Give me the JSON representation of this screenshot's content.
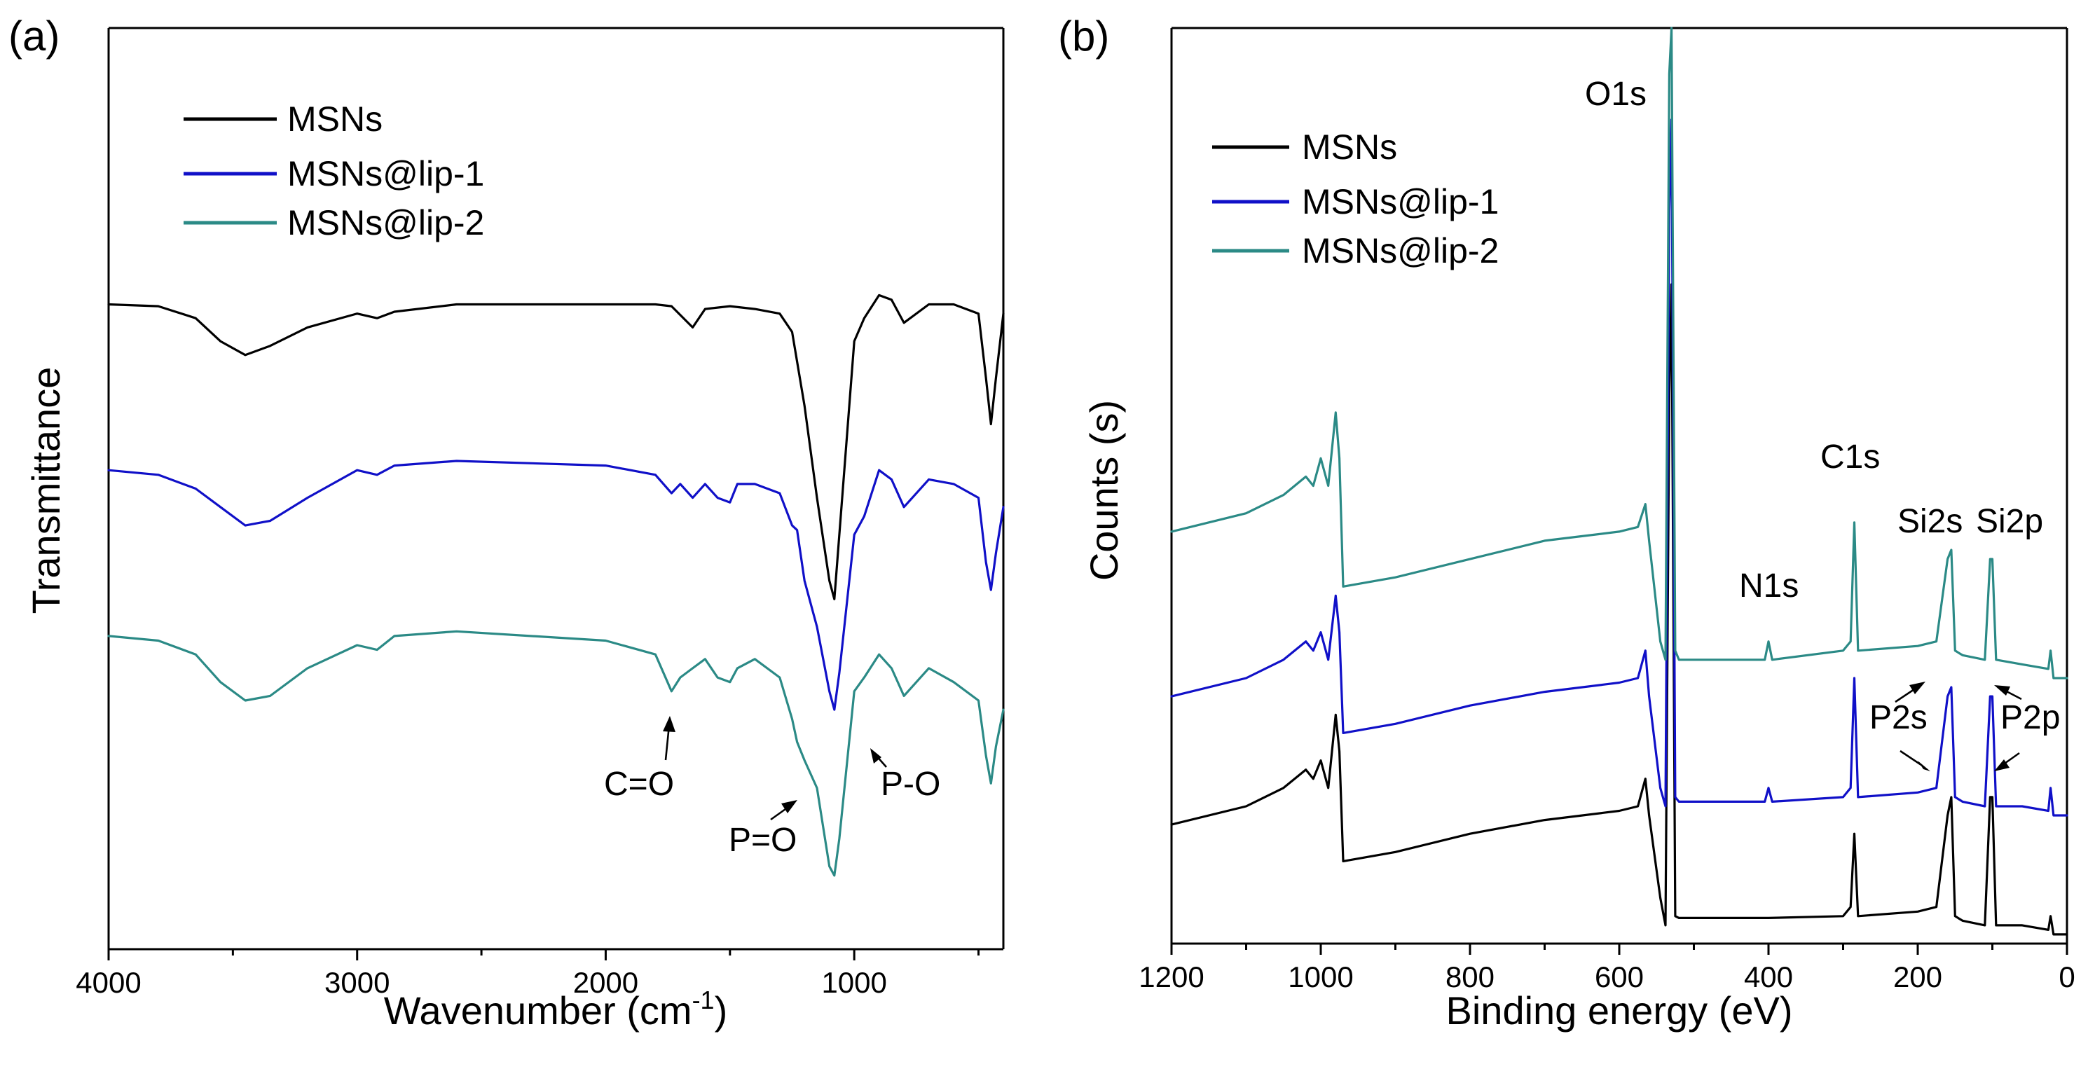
{
  "colors": {
    "msns": "#000000",
    "lip1": "#1010C8",
    "lip2": "#2B8A86"
  },
  "chart_data": [
    {
      "type": "line",
      "panel_label": "(a)",
      "title": "",
      "xlabel": "Wavenumber (cm",
      "xlabel_sup": "-1",
      "xlabel_close": ")",
      "ylabel": "Transmittance",
      "xlim": [
        4000,
        400
      ],
      "ylim": [
        0,
        100
      ],
      "x_ticks": [
        4000,
        3000,
        2000,
        1000
      ],
      "x_tick_labels": [
        "4000",
        "3000",
        "2000",
        "1000"
      ],
      "y_ticks_shown": false,
      "grid": false,
      "legend_position": "top-left",
      "legend": [
        "MSNs",
        "MSNs@lip-1",
        "MSNs@lip-2"
      ],
      "series": [
        {
          "name": "MSNs",
          "x": [
            4000,
            3800,
            3650,
            3550,
            3450,
            3350,
            3200,
            3000,
            2920,
            2850,
            2600,
            2000,
            1800,
            1735,
            1650,
            1600,
            1500,
            1400,
            1300,
            1250,
            1200,
            1150,
            1100,
            1080,
            1060,
            1000,
            960,
            900,
            850,
            800,
            700,
            600,
            500,
            470,
            450,
            430,
            400
          ],
          "y": [
            70,
            69.8,
            68.5,
            66,
            64.5,
            65.5,
            67.5,
            69,
            68.5,
            69.2,
            70,
            70,
            70,
            69.8,
            67.5,
            69.5,
            69.8,
            69.5,
            69,
            67,
            59,
            49,
            40,
            38,
            45,
            66,
            68.5,
            71,
            70.5,
            68,
            70,
            70,
            69,
            62,
            57,
            62,
            69
          ]
        },
        {
          "name": "MSNs@lip-1",
          "x": [
            4000,
            3800,
            3650,
            3550,
            3450,
            3350,
            3200,
            3000,
            2920,
            2850,
            2600,
            2000,
            1800,
            1735,
            1700,
            1650,
            1600,
            1550,
            1500,
            1470,
            1400,
            1300,
            1250,
            1230,
            1200,
            1150,
            1100,
            1080,
            1060,
            1000,
            960,
            900,
            850,
            800,
            700,
            600,
            500,
            470,
            450,
            430,
            400
          ],
          "y": [
            52,
            51.5,
            50,
            48,
            46,
            46.5,
            49,
            52,
            51.5,
            52.5,
            53,
            52.5,
            51.5,
            49.5,
            50.5,
            49,
            50.5,
            49,
            48.5,
            50.5,
            50.5,
            49.5,
            46,
            45.5,
            40,
            35,
            28,
            26,
            30,
            45,
            47,
            52,
            51,
            48,
            51,
            50.5,
            49,
            42,
            39,
            43,
            48
          ]
        },
        {
          "name": "MSNs@lip-2",
          "x": [
            4000,
            3800,
            3650,
            3550,
            3450,
            3350,
            3200,
            3000,
            2920,
            2850,
            2600,
            2000,
            1800,
            1735,
            1700,
            1650,
            1600,
            1550,
            1500,
            1470,
            1400,
            1300,
            1250,
            1230,
            1200,
            1150,
            1100,
            1080,
            1060,
            1000,
            960,
            900,
            850,
            800,
            700,
            600,
            500,
            470,
            450,
            430,
            400
          ],
          "y": [
            34,
            33.5,
            32,
            29,
            27,
            27.5,
            30.5,
            33,
            32.5,
            34,
            34.5,
            33.5,
            32,
            28,
            29.5,
            30.5,
            31.5,
            29.5,
            29,
            30.5,
            31.5,
            29.5,
            25,
            22.5,
            20.5,
            17.5,
            9,
            8,
            12,
            28,
            29.5,
            32,
            30.5,
            27.5,
            30.5,
            29,
            27,
            21,
            18,
            22,
            26
          ]
        }
      ],
      "annotations": [
        "C=O",
        "P=O",
        "P-O"
      ]
    },
    {
      "type": "line",
      "panel_label": "(b)",
      "title": "",
      "xlabel": "Binding energy (eV)",
      "ylabel": "Counts (s)",
      "xlim": [
        1200,
        0
      ],
      "ylim": [
        0,
        100
      ],
      "x_ticks": [
        1200,
        1000,
        800,
        600,
        400,
        200,
        0
      ],
      "x_tick_labels": [
        "1200",
        "1000",
        "800",
        "600",
        "400",
        "200",
        "0"
      ],
      "y_ticks_shown": false,
      "grid": false,
      "legend_position": "top-left",
      "legend": [
        "MSNs",
        "MSNs@lip-1",
        "MSNs@lip-2"
      ],
      "series": [
        {
          "name": "MSNs",
          "x": [
            1200,
            1100,
            1050,
            1020,
            1010,
            1000,
            990,
            980,
            975,
            970,
            900,
            800,
            700,
            600,
            575,
            565,
            560,
            545,
            538,
            533,
            530,
            525,
            520,
            400,
            300,
            290,
            285,
            280,
            200,
            175,
            160,
            155,
            150,
            140,
            110,
            103,
            100,
            95,
            60,
            25,
            22,
            18,
            0
          ],
          "y": [
            13,
            15,
            17,
            19,
            18,
            20,
            17,
            25,
            21,
            9,
            10,
            12,
            13.5,
            14.5,
            15,
            18,
            14,
            5,
            2,
            60,
            72,
            3,
            2.8,
            2.8,
            3,
            4,
            12,
            3,
            3.5,
            4,
            14,
            16,
            3,
            2.5,
            2,
            16,
            16,
            2,
            2,
            1.5,
            3,
            1,
            1
          ]
        },
        {
          "name": "MSNs@lip-1",
          "x": [
            1200,
            1100,
            1050,
            1020,
            1010,
            1000,
            990,
            980,
            975,
            970,
            900,
            800,
            700,
            600,
            575,
            565,
            560,
            545,
            538,
            533,
            530,
            525,
            520,
            405,
            400,
            395,
            300,
            290,
            285,
            280,
            200,
            175,
            160,
            155,
            150,
            140,
            110,
            103,
            100,
            95,
            60,
            25,
            22,
            18,
            0
          ],
          "y": [
            27,
            29,
            31,
            33,
            32,
            34,
            31,
            38,
            34,
            23,
            24,
            26,
            27.5,
            28.5,
            29,
            32,
            27,
            17,
            15,
            80,
            90,
            16,
            15.5,
            15.5,
            17,
            15.5,
            16,
            17,
            29,
            16,
            16.5,
            17,
            27,
            28,
            16,
            15.5,
            15,
            27,
            27,
            15,
            15,
            14.5,
            17,
            14,
            14
          ]
        },
        {
          "name": "MSNs@lip-2",
          "x": [
            1200,
            1100,
            1050,
            1020,
            1010,
            1000,
            990,
            980,
            975,
            970,
            900,
            800,
            700,
            600,
            575,
            565,
            560,
            545,
            538,
            533,
            530,
            525,
            520,
            405,
            400,
            395,
            300,
            290,
            285,
            280,
            200,
            175,
            160,
            155,
            150,
            140,
            110,
            103,
            100,
            95,
            60,
            25,
            22,
            18,
            0
          ],
          "y": [
            45,
            47,
            49,
            51,
            50,
            53,
            50,
            58,
            53,
            39,
            40,
            42,
            44,
            45,
            45.5,
            48,
            44,
            33,
            31,
            95,
            100,
            32,
            31,
            31,
            33,
            31,
            32,
            33,
            46,
            32,
            32.5,
            33,
            42,
            43,
            32,
            31.5,
            31,
            42,
            42,
            31,
            30.5,
            30,
            32,
            29,
            29
          ]
        }
      ],
      "annotations": [
        "O1s",
        "C1s",
        "N1s",
        "Si2s",
        "Si2p",
        "P2s",
        "P2p"
      ]
    }
  ]
}
